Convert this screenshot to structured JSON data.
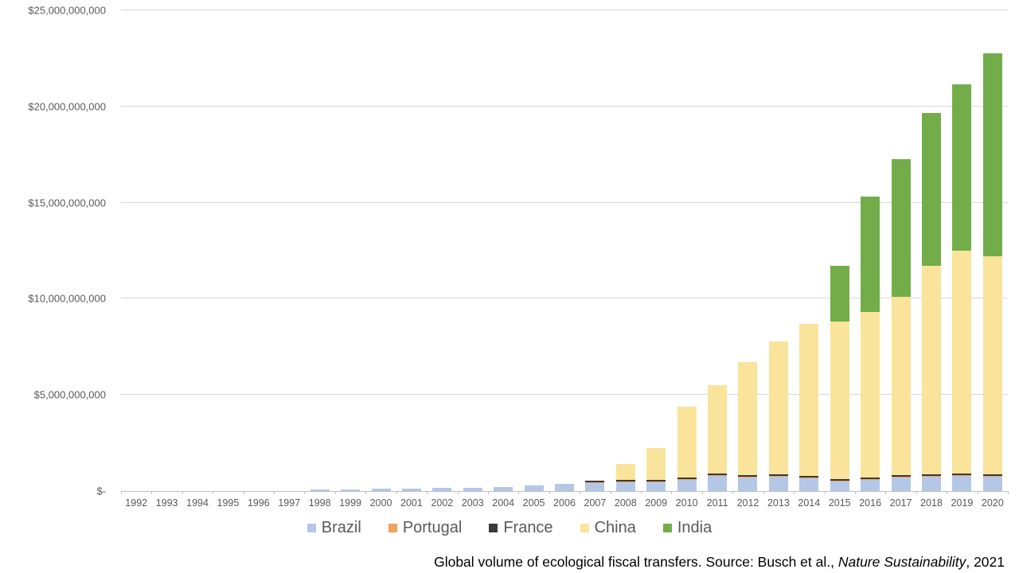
{
  "chart_data": {
    "type": "bar",
    "stacked": true,
    "title": "",
    "values_unit": "USD billions",
    "categories": [
      "1992",
      "1993",
      "1994",
      "1995",
      "1996",
      "1997",
      "1998",
      "1999",
      "2000",
      "2001",
      "2002",
      "2003",
      "2004",
      "2005",
      "2006",
      "2007",
      "2008",
      "2009",
      "2010",
      "2011",
      "2012",
      "2013",
      "2014",
      "2015",
      "2016",
      "2017",
      "2018",
      "2019",
      "2020"
    ],
    "series": [
      {
        "name": "Brazil",
        "color": "#B4C7E7",
        "values": [
          0,
          0,
          0,
          0,
          0,
          0,
          0.08,
          0.08,
          0.12,
          0.12,
          0.15,
          0.17,
          0.21,
          0.29,
          0.37,
          0.42,
          0.46,
          0.46,
          0.58,
          0.79,
          0.7,
          0.75,
          0.67,
          0.5,
          0.58,
          0.71,
          0.75,
          0.79,
          0.75
        ]
      },
      {
        "name": "Portugal",
        "color": "#F0A261",
        "values": [
          0,
          0,
          0,
          0,
          0,
          0,
          0,
          0,
          0,
          0,
          0,
          0,
          0,
          0,
          0,
          0.05,
          0.05,
          0.05,
          0.05,
          0.05,
          0.05,
          0.05,
          0.05,
          0.05,
          0.05,
          0.05,
          0.05,
          0.05,
          0.05
        ]
      },
      {
        "name": "France",
        "color": "#3A3A3A",
        "values": [
          0,
          0,
          0,
          0,
          0,
          0,
          0,
          0,
          0,
          0,
          0,
          0,
          0,
          0,
          0,
          0.06,
          0.06,
          0.06,
          0.06,
          0.06,
          0.06,
          0.06,
          0.06,
          0.06,
          0.06,
          0.06,
          0.06,
          0.06,
          0.06
        ]
      },
      {
        "name": "China",
        "color": "#FAE49B",
        "values": [
          0,
          0,
          0,
          0,
          0,
          0,
          0,
          0,
          0,
          0,
          0,
          0,
          0,
          0,
          0,
          0,
          0.84,
          1.67,
          3.71,
          4.6,
          5.89,
          6.94,
          7.9,
          8.19,
          8.61,
          9.28,
          10.84,
          11.6,
          11.34
        ]
      },
      {
        "name": "India",
        "color": "#72AD4A",
        "values": [
          0,
          0,
          0,
          0,
          0,
          0,
          0,
          0,
          0,
          0,
          0,
          0,
          0,
          0,
          0,
          0,
          0,
          0,
          0,
          0,
          0,
          0,
          0,
          2.9,
          6.0,
          7.15,
          7.95,
          8.65,
          10.55
        ]
      }
    ],
    "ylim": [
      0,
      25
    ],
    "yticks": [
      {
        "value": 0,
        "label": "$-"
      },
      {
        "value": 5,
        "label": "$5,000,000,000"
      },
      {
        "value": 10,
        "label": "$10,000,000,000"
      },
      {
        "value": 15,
        "label": "$15,000,000,000"
      },
      {
        "value": 20,
        "label": "$20,000,000,000"
      },
      {
        "value": 25,
        "label": "$25,000,000,000"
      }
    ],
    "grid": true,
    "legend_position": "bottom",
    "caption": {
      "prefix": "Global volume of ecological fiscal transfers. Source: Busch et al., ",
      "italic": "Nature Sustainability",
      "suffix": ", 2021"
    }
  },
  "colors": {
    "grid": "#D9D9D9",
    "axis": "#BFBFBF",
    "axis_text": "#595959",
    "legend_text": "#595959",
    "caption_text": "#000000",
    "background": "#FFFFFF"
  }
}
